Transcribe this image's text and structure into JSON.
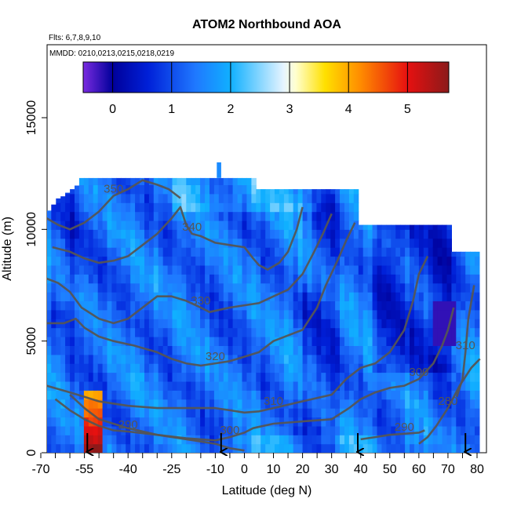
{
  "chart_data": {
    "type": "heatmap",
    "title": "ATOM2 Northbound AOA",
    "annotations": [
      "Flts: 6,7,8,9,10",
      "MMDD: 0210,0213,0215,0218,0219"
    ],
    "xlabel": "Latitude (deg N)",
    "ylabel": "Altitude (m)",
    "xlim": [
      -70,
      83
    ],
    "ylim": [
      0,
      17500
    ],
    "x_ticks": [
      -70,
      -55,
      -40,
      -25,
      -10,
      0,
      10,
      20,
      30,
      40,
      50,
      60,
      70,
      80
    ],
    "x_tick_labels": [
      "-70",
      "-55",
      "-40",
      "-25",
      "-10",
      "0",
      "10",
      "20",
      "30",
      "40",
      "50",
      "60",
      "70",
      "80"
    ],
    "x_minor_ticks": [
      -65,
      -60,
      -50,
      -45,
      -35,
      -30,
      -20,
      -15,
      -5,
      5,
      15,
      25,
      35,
      45,
      55,
      65,
      75
    ],
    "y_ticks": [
      0,
      5000,
      10000,
      15000
    ],
    "y_tick_labels": [
      "0",
      "5000",
      "10000",
      "15000"
    ],
    "colorbar": {
      "min": -0.5,
      "max": 5.7,
      "ticks": [
        0,
        1,
        2,
        3,
        4,
        5
      ],
      "tick_labels": [
        "0",
        "1",
        "2",
        "3",
        "4",
        "5"
      ],
      "colors": [
        "#7a2be0",
        "#00009a",
        "#0020d8",
        "#1f78ff",
        "#10b0ff",
        "#e6f4ff",
        "#ffffd0",
        "#ffe000",
        "#ff8c00",
        "#e61010",
        "#8b1a1a"
      ],
      "stops": [
        -0.5,
        0.0,
        0.6,
        1.4,
        2.0,
        2.9,
        3.1,
        3.6,
        4.2,
        5.0,
        5.7
      ]
    },
    "contours": [
      {
        "label": "290",
        "points": [
          [
            -65,
            2400
          ],
          [
            -60,
            1900
          ],
          [
            -55,
            1500
          ],
          [
            -50,
            1200
          ],
          [
            -45,
            1000
          ],
          [
            -40,
            950
          ],
          [
            -30,
            800
          ],
          [
            -20,
            600
          ],
          [
            -10,
            400
          ],
          [
            -5,
            200
          ],
          [
            0,
            100
          ]
        ]
      },
      {
        "label": "290",
        "points": [
          [
            40,
            600
          ],
          [
            45,
            700
          ],
          [
            50,
            800
          ],
          [
            55,
            850
          ],
          [
            60,
            900
          ],
          [
            62,
            1000
          ]
        ]
      },
      {
        "label": "280",
        "points": [
          [
            60,
            400
          ],
          [
            63,
            700
          ],
          [
            66,
            1200
          ],
          [
            70,
            2000
          ],
          [
            74,
            3000
          ],
          [
            78,
            3800
          ],
          [
            81,
            4200
          ]
        ]
      },
      {
        "label": "300",
        "points": [
          [
            -60,
            2600
          ],
          [
            -55,
            2000
          ],
          [
            -50,
            1500
          ],
          [
            -40,
            1100
          ],
          [
            -30,
            800
          ],
          [
            -20,
            650
          ],
          [
            -10,
            550
          ],
          [
            -5,
            700
          ],
          [
            0,
            900
          ],
          [
            3,
            1100
          ],
          [
            10,
            1300
          ],
          [
            20,
            1400
          ],
          [
            30,
            1500
          ],
          [
            36,
            2000
          ]
        ]
      },
      {
        "label": "300",
        "points": [
          [
            36,
            2000
          ],
          [
            40,
            2400
          ],
          [
            45,
            2700
          ],
          [
            50,
            2900
          ],
          [
            55,
            3000
          ],
          [
            60,
            3300
          ],
          [
            65,
            4000
          ],
          [
            68,
            4800
          ],
          [
            70,
            5500
          ],
          [
            72,
            6500
          ]
        ]
      },
      {
        "label": "310",
        "points": [
          [
            -68,
            3000
          ],
          [
            -60,
            2700
          ],
          [
            -55,
            2500
          ],
          [
            -50,
            2300
          ],
          [
            -40,
            2100
          ],
          [
            -30,
            2000
          ],
          [
            -20,
            2000
          ],
          [
            -10,
            2000
          ],
          [
            -5,
            1900
          ],
          [
            0,
            1800
          ],
          [
            5,
            1850
          ],
          [
            10,
            2000
          ],
          [
            20,
            2300
          ],
          [
            30,
            2600
          ],
          [
            35,
            3300
          ],
          [
            40,
            3800
          ],
          [
            45,
            4000
          ],
          [
            50,
            4500
          ],
          [
            55,
            5500
          ],
          [
            58,
            6800
          ],
          [
            60,
            8000
          ],
          [
            63,
            8800
          ]
        ]
      },
      {
        "label": "310",
        "points": [
          [
            73,
            2500
          ],
          [
            75,
            3300
          ],
          [
            76,
            4500
          ],
          [
            77,
            6000
          ],
          [
            79,
            7500
          ]
        ]
      },
      {
        "label": "320",
        "points": [
          [
            -68,
            5800
          ],
          [
            -62,
            5800
          ],
          [
            -58,
            6000
          ],
          [
            -55,
            5600
          ],
          [
            -50,
            5200
          ],
          [
            -45,
            5000
          ],
          [
            -38,
            4800
          ],
          [
            -30,
            4500
          ],
          [
            -25,
            4200
          ],
          [
            -20,
            4000
          ],
          [
            -15,
            3900
          ],
          [
            -10,
            4000
          ],
          [
            -5,
            4100
          ],
          [
            0,
            4300
          ],
          [
            5,
            4500
          ],
          [
            10,
            5000
          ],
          [
            20,
            5500
          ],
          [
            25,
            6500
          ],
          [
            28,
            7500
          ],
          [
            32,
            8600
          ],
          [
            35,
            9500
          ],
          [
            38,
            10300
          ]
        ]
      },
      {
        "label": "330",
        "points": [
          [
            -68,
            7800
          ],
          [
            -64,
            7600
          ],
          [
            -60,
            7200
          ],
          [
            -56,
            6500
          ],
          [
            -50,
            6000
          ],
          [
            -45,
            5800
          ],
          [
            -40,
            6000
          ],
          [
            -35,
            6500
          ],
          [
            -30,
            7000
          ],
          [
            -25,
            7000
          ],
          [
            -20,
            6800
          ],
          [
            -15,
            6500
          ],
          [
            -12,
            6300
          ],
          [
            -5,
            6500
          ],
          [
            0,
            6600
          ],
          [
            5,
            6700
          ],
          [
            10,
            7000
          ],
          [
            15,
            7300
          ],
          [
            20,
            8000
          ],
          [
            24,
            9000
          ],
          [
            27,
            9800
          ],
          [
            30,
            10700
          ]
        ]
      },
      {
        "label": "340",
        "points": [
          [
            -66,
            9200
          ],
          [
            -60,
            9000
          ],
          [
            -55,
            8700
          ],
          [
            -50,
            8500
          ],
          [
            -45,
            8600
          ],
          [
            -40,
            8800
          ],
          [
            -35,
            9300
          ],
          [
            -30,
            9800
          ],
          [
            -25,
            10500
          ],
          [
            -22,
            11000
          ],
          [
            -20,
            10200
          ],
          [
            -18,
            9800
          ],
          [
            -15,
            9700
          ],
          [
            -10,
            9400
          ],
          [
            -5,
            9300
          ],
          [
            0,
            9200
          ],
          [
            3,
            8700
          ],
          [
            5,
            8400
          ],
          [
            8,
            8200
          ],
          [
            12,
            8500
          ],
          [
            15,
            9000
          ],
          [
            18,
            10000
          ],
          [
            20,
            11000
          ]
        ]
      },
      {
        "label": "350",
        "points": [
          [
            -68,
            10500
          ],
          [
            -64,
            10200
          ],
          [
            -60,
            10000
          ],
          [
            -55,
            10300
          ],
          [
            -50,
            10800
          ],
          [
            -45,
            11500
          ],
          [
            -40,
            11800
          ],
          [
            -35,
            12200
          ],
          [
            -30,
            12000
          ],
          [
            -26,
            11800
          ],
          [
            -22,
            11400
          ]
        ]
      }
    ],
    "arrows": [
      -54,
      -8,
      39,
      76
    ],
    "grid": false
  }
}
